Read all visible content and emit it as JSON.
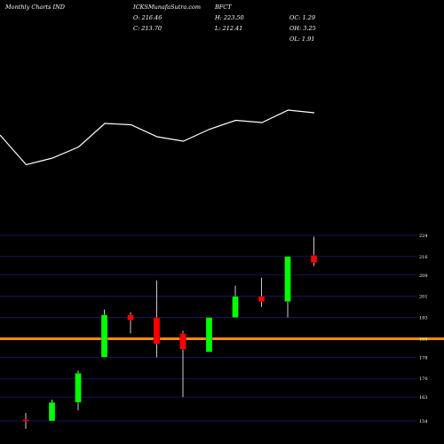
{
  "header": {
    "title": "Monthly Charts IND",
    "symbol": "ICKSMunafaSutra.com",
    "ticker": "BFCT"
  },
  "stats": {
    "o": "O: 216.46",
    "c": "C: 213.70",
    "h": "H: 223.50",
    "l": "L: 212.41",
    "oc": "OC: 1.29",
    "oh": "OH: 3.25",
    "ol": "OL: 1.91"
  },
  "colors": {
    "background": "#000000",
    "up": "#00ff00",
    "down": "#ff0000",
    "line": "#ffffff",
    "level": "#ff8c00",
    "grid": "#1a1a6e"
  },
  "chart_data": [
    {
      "type": "line",
      "description_source": "upper indicator line panel (no axis labels printed)",
      "values": [
        0.72,
        0.05,
        0.2,
        0.45,
        0.98,
        0.95,
        0.68,
        0.58,
        0.85,
        1.05,
        1.0,
        1.28,
        1.22
      ]
    },
    {
      "type": "candlestick",
      "ylim": [
        153,
        225
      ],
      "yticks": [
        154,
        163,
        170,
        178,
        185,
        193,
        201,
        209,
        216,
        224
      ],
      "level_line": 185,
      "candles": [
        {
          "open": 154,
          "close": 154.5,
          "high": 157,
          "low": 151,
          "dir": "down"
        },
        {
          "open": 154,
          "close": 161,
          "high": 162,
          "low": 154,
          "dir": "up"
        },
        {
          "open": 161,
          "close": 172,
          "high": 173,
          "low": 158,
          "dir": "up"
        },
        {
          "open": 178,
          "close": 194,
          "high": 196,
          "low": 178,
          "dir": "up"
        },
        {
          "open": 194,
          "close": 192,
          "high": 195,
          "low": 187,
          "dir": "down"
        },
        {
          "open": 193,
          "close": 183,
          "high": 207,
          "low": 178,
          "dir": "down"
        },
        {
          "open": 187,
          "close": 181,
          "high": 188,
          "low": 163,
          "dir": "down"
        },
        {
          "open": 180,
          "close": 193,
          "high": 193,
          "low": 180,
          "dir": "up"
        },
        {
          "open": 193,
          "close": 201,
          "high": 205,
          "low": 193,
          "dir": "up"
        },
        {
          "open": 201,
          "close": 199,
          "high": 208,
          "low": 197,
          "dir": "down"
        },
        {
          "open": 199,
          "close": 216,
          "high": 216,
          "low": 193,
          "dir": "up"
        },
        {
          "open": 216.46,
          "close": 213.7,
          "high": 223.5,
          "low": 212.41,
          "dir": "down"
        }
      ]
    }
  ]
}
